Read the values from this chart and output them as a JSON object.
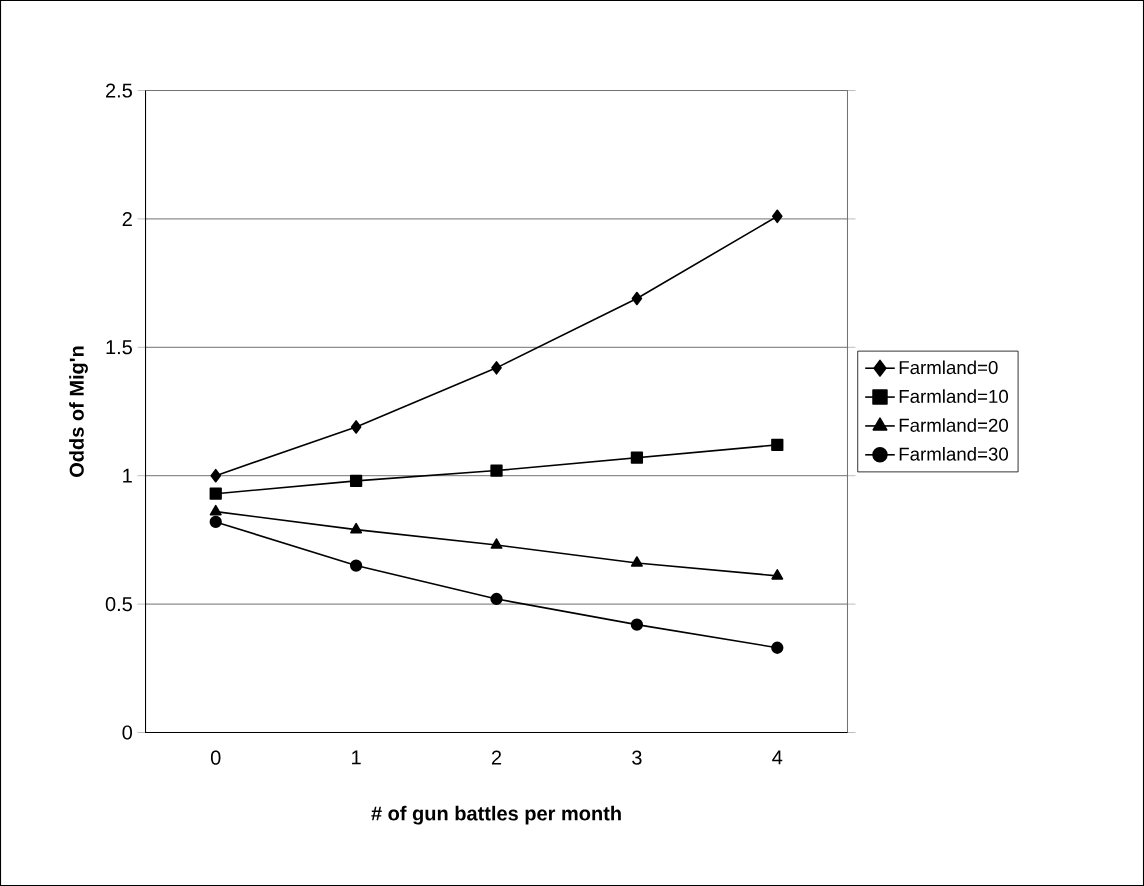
{
  "chart_data": {
    "type": "line",
    "xlabel": "# of gun battles per month",
    "ylabel": "Odds of Mig'n",
    "categories": [
      "0",
      "1",
      "2",
      "3",
      "4"
    ],
    "series": [
      {
        "name": "Farmland=0",
        "color": "#000000",
        "marker": "diamond",
        "values": [
          1.0,
          1.19,
          1.42,
          1.69,
          2.01
        ]
      },
      {
        "name": "Farmland=10",
        "color": "#000000",
        "marker": "square",
        "values": [
          0.93,
          0.98,
          1.02,
          1.07,
          1.12
        ]
      },
      {
        "name": "Farmland=20",
        "color": "#000000",
        "marker": "triangle",
        "values": [
          0.86,
          0.79,
          0.73,
          0.66,
          0.61
        ]
      },
      {
        "name": "Farmland=30",
        "color": "#000000",
        "marker": "circle",
        "values": [
          0.82,
          0.65,
          0.52,
          0.42,
          0.33
        ]
      }
    ],
    "ylim": [
      0,
      2.5
    ],
    "yticks": [
      0,
      0.5,
      1,
      1.5,
      2,
      2.5
    ],
    "grid": "y",
    "legend": "right",
    "line_style": "solid"
  }
}
